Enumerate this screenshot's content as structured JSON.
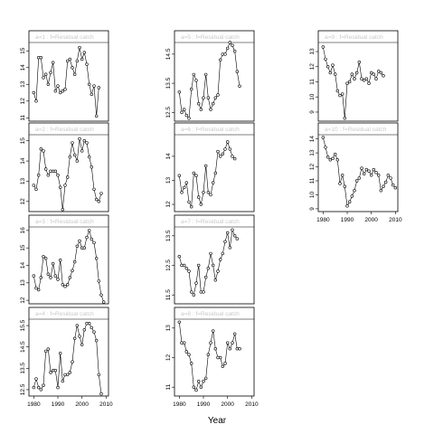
{
  "xlabel": "Year",
  "chart_data": [
    {
      "type": "line",
      "panel": "a=1 : f=Residual catch",
      "xlim": [
        1978,
        2011
      ],
      "ylim": [
        10.8,
        15.5
      ],
      "yticks": [
        11,
        12,
        13,
        14,
        15
      ],
      "xticks": [],
      "x": [
        1980,
        1981,
        1982,
        1983,
        1984,
        1985,
        1986,
        1987,
        1988,
        1989,
        1990,
        1991,
        1992,
        1993,
        1994,
        1995,
        1996,
        1997,
        1998,
        1999,
        2000,
        2001,
        2002,
        2003,
        2004,
        2005,
        2006,
        2007,
        2008,
        2009,
        2010
      ],
      "y": [
        12.5,
        12.0,
        14.6,
        14.6,
        13.4,
        13.6,
        13.0,
        13.7,
        14.3,
        12.6,
        12.9,
        12.5,
        12.6,
        12.7,
        14.4,
        14.5,
        14.0,
        13.6,
        14.4,
        15.2,
        14.5,
        14.9,
        14.2,
        13.0,
        12.4,
        12.9,
        11.1,
        12.8,
        null,
        null,
        null
      ]
    },
    {
      "type": "line",
      "panel": "a=2 : f=Residual catch",
      "xlim": [
        1978,
        2011
      ],
      "ylim": [
        11.5,
        15.3
      ],
      "yticks": [
        12,
        13,
        14,
        15
      ],
      "xticks": [],
      "x": [
        1980,
        1981,
        1982,
        1983,
        1984,
        1985,
        1986,
        1987,
        1988,
        1989,
        1990,
        1991,
        1992,
        1993,
        1994,
        1995,
        1996,
        1997,
        1998,
        1999,
        2000,
        2001,
        2002,
        2003,
        2004,
        2005,
        2006,
        2007,
        2008,
        2009,
        2010
      ],
      "y": [
        12.8,
        12.6,
        13.3,
        14.6,
        14.5,
        13.6,
        13.3,
        13.5,
        13.5,
        13.5,
        13.3,
        12.7,
        11.6,
        12.8,
        13.2,
        14.2,
        14.9,
        14.3,
        14.0,
        15.1,
        14.5,
        15.0,
        14.9,
        14.2,
        13.7,
        12.6,
        12.1,
        12.0,
        12.4,
        null,
        null
      ]
    },
    {
      "type": "line",
      "panel": "a=3 : f=Residual catch",
      "xlim": [
        1978,
        2011
      ],
      "ylim": [
        11.8,
        16.2
      ],
      "yticks": [
        12,
        13,
        14,
        15,
        16
      ],
      "xticks": [],
      "x": [
        1980,
        1981,
        1982,
        1983,
        1984,
        1985,
        1986,
        1987,
        1988,
        1989,
        1990,
        1991,
        1992,
        1993,
        1994,
        1995,
        1996,
        1997,
        1998,
        1999,
        2000,
        2001,
        2002,
        2003,
        2004,
        2005,
        2006,
        2007,
        2008,
        2009,
        2010
      ],
      "y": [
        13.4,
        12.7,
        12.6,
        13.3,
        14.5,
        14.4,
        13.5,
        13.3,
        14.1,
        13.4,
        13.2,
        14.3,
        12.9,
        12.8,
        12.9,
        13.3,
        13.7,
        14.2,
        15.1,
        15.4,
        15.0,
        15.0,
        15.6,
        16.0,
        15.5,
        15.3,
        14.4,
        13.1,
        12.3,
        11.9,
        null
      ]
    },
    {
      "type": "line",
      "panel": "a=4 : f=Residual catch",
      "xlim": [
        1978,
        2011
      ],
      "ylim": [
        12.2,
        15.8
      ],
      "yticks": [
        12.5,
        13.5,
        14.5,
        15.5
      ],
      "xticks": [
        1980,
        1990,
        2000,
        2010
      ],
      "x": [
        1980,
        1981,
        1982,
        1983,
        1984,
        1985,
        1986,
        1987,
        1988,
        1989,
        1990,
        1991,
        1992,
        1993,
        1994,
        1995,
        1996,
        1997,
        1998,
        1999,
        2000,
        2001,
        2002,
        2003,
        2004,
        2005,
        2006,
        2007,
        2008,
        2009,
        2010
      ],
      "y": [
        12.6,
        13.0,
        12.6,
        12.5,
        12.7,
        14.3,
        14.4,
        13.3,
        13.4,
        13.4,
        12.6,
        14.2,
        12.9,
        13.2,
        13.2,
        13.3,
        13.8,
        14.9,
        15.5,
        15.0,
        14.6,
        15.3,
        15.6,
        15.6,
        15.4,
        15.2,
        14.8,
        13.2,
        12.3,
        null,
        null
      ]
    },
    {
      "type": "line",
      "panel": "a=5 : f=Residual catch",
      "xlim": [
        1978,
        2011
      ],
      "ylim": [
        12.2,
        14.9
      ],
      "yticks": [
        12.5,
        13.5,
        14.5
      ],
      "xticks": [],
      "x": [
        1980,
        1981,
        1982,
        1983,
        1984,
        1985,
        1986,
        1987,
        1988,
        1989,
        1990,
        1991,
        1992,
        1993,
        1994,
        1995,
        1996,
        1997,
        1998,
        1999,
        2000,
        2001,
        2002,
        2003,
        2004,
        2005,
        2006,
        2007,
        2008,
        2009,
        2010
      ],
      "y": [
        13.2,
        12.5,
        12.6,
        12.4,
        12.3,
        13.3,
        13.8,
        13.6,
        12.8,
        12.6,
        13.0,
        13.8,
        13.0,
        12.6,
        12.8,
        13.0,
        13.1,
        14.3,
        14.5,
        14.5,
        14.7,
        14.9,
        14.8,
        14.6,
        13.9,
        13.4,
        null,
        null,
        null,
        null,
        null
      ]
    },
    {
      "type": "line",
      "panel": "a=6 : f=Residual catch",
      "xlim": [
        1978,
        2011
      ],
      "ylim": [
        11.7,
        14.9
      ],
      "yticks": [
        12.0,
        13.0,
        14.0
      ],
      "xticks": [],
      "x": [
        1980,
        1981,
        1982,
        1983,
        1984,
        1985,
        1986,
        1987,
        1988,
        1989,
        1990,
        1991,
        1992,
        1993,
        1994,
        1995,
        1996,
        1997,
        1998,
        1999,
        2000,
        2001,
        2002,
        2003,
        2004,
        2005,
        2006,
        2007,
        2008,
        2009,
        2010
      ],
      "y": [
        13.2,
        12.5,
        12.7,
        12.9,
        12.1,
        11.9,
        13.3,
        13.2,
        12.3,
        12.0,
        12.5,
        13.6,
        12.5,
        12.4,
        12.9,
        13.3,
        14.2,
        14.0,
        14.1,
        14.3,
        14.6,
        14.3,
        14.0,
        13.9,
        null,
        null,
        null,
        null,
        null,
        null,
        null
      ]
    },
    {
      "type": "line",
      "panel": "a=7 : f=Residual catch",
      "xlim": [
        1978,
        2011
      ],
      "ylim": [
        11.2,
        13.8
      ],
      "yticks": [
        11.5,
        12.5,
        13.5
      ],
      "xticks": [],
      "x": [
        1980,
        1981,
        1982,
        1983,
        1984,
        1985,
        1986,
        1987,
        1988,
        1989,
        1990,
        1991,
        1992,
        1993,
        1994,
        1995,
        1996,
        1997,
        1998,
        1999,
        2000,
        2001,
        2002,
        2003,
        2004,
        2005,
        2006,
        2007,
        2008,
        2009,
        2010
      ],
      "y": [
        12.8,
        12.5,
        12.5,
        12.4,
        12.3,
        11.6,
        11.5,
        11.9,
        12.5,
        11.6,
        11.6,
        12.1,
        12.4,
        12.9,
        12.5,
        12.0,
        12.3,
        12.7,
        12.9,
        13.3,
        13.6,
        13.1,
        13.7,
        13.5,
        13.4,
        null,
        null,
        null,
        null,
        null,
        null
      ]
    },
    {
      "type": "line",
      "panel": "a=8 : f=Residual catch",
      "xlim": [
        1978,
        2011
      ],
      "ylim": [
        10.7,
        13.3
      ],
      "yticks": [
        11.0,
        12.0,
        13.0
      ],
      "xticks": [
        1980,
        1990,
        2000,
        2010
      ],
      "x": [
        1980,
        1981,
        1982,
        1983,
        1984,
        1985,
        1986,
        1987,
        1988,
        1989,
        1990,
        1991,
        1992,
        1993,
        1994,
        1995,
        1996,
        1997,
        1998,
        1999,
        2000,
        2001,
        2002,
        2003,
        2004,
        2005,
        2006,
        2007,
        2008,
        2009,
        2010
      ],
      "y": [
        13.2,
        12.5,
        12.5,
        12.2,
        12.1,
        11.8,
        11.0,
        10.9,
        11.2,
        11.0,
        11.2,
        11.3,
        12.1,
        12.5,
        12.9,
        12.3,
        12.0,
        12.0,
        11.7,
        11.8,
        12.5,
        12.3,
        12.5,
        12.8,
        12.3,
        12.3,
        null,
        null,
        null,
        null,
        null
      ]
    },
    {
      "type": "line",
      "panel": "a=9 : f=Residual catch",
      "xlim": [
        1978,
        2011
      ],
      "ylim": [
        8.4,
        13.6
      ],
      "yticks": [
        9,
        10,
        11,
        12,
        13
      ],
      "xticks": [],
      "x": [
        1980,
        1981,
        1982,
        1983,
        1984,
        1985,
        1986,
        1987,
        1988,
        1989,
        1990,
        1991,
        1992,
        1993,
        1994,
        1995,
        1996,
        1997,
        1998,
        1999,
        2000,
        2001,
        2002,
        2003,
        2004,
        2005,
        2006,
        2007,
        2008,
        2009,
        2010
      ],
      "y": [
        13.3,
        12.5,
        12.0,
        11.6,
        12.1,
        11.5,
        10.4,
        10.1,
        10.2,
        8.6,
        10.9,
        11.0,
        11.5,
        11.2,
        11.6,
        12.3,
        11.2,
        11.1,
        11.2,
        10.9,
        11.6,
        11.5,
        11.2,
        11.7,
        11.6,
        11.4,
        null,
        null,
        null,
        null,
        null
      ]
    },
    {
      "type": "line",
      "panel": "a=10 : f=Residual catch",
      "xlim": [
        1978,
        2011
      ],
      "ylim": [
        8.8,
        14.3
      ],
      "yticks": [
        9,
        10,
        11,
        12,
        13,
        14
      ],
      "xticks": [
        1980,
        1990,
        2000,
        2010
      ],
      "x": [
        1980,
        1981,
        1982,
        1983,
        1984,
        1985,
        1986,
        1987,
        1988,
        1989,
        1990,
        1991,
        1992,
        1993,
        1994,
        1995,
        1996,
        1997,
        1998,
        1999,
        2000,
        2001,
        2002,
        2003,
        2004,
        2005,
        2006,
        2007,
        2008,
        2009,
        2010
      ],
      "y": [
        14.1,
        13.4,
        12.7,
        12.5,
        12.6,
        12.9,
        12.5,
        10.8,
        11.4,
        10.6,
        9.2,
        9.5,
        9.9,
        10.3,
        11.0,
        11.2,
        11.9,
        11.5,
        11.8,
        11.7,
        11.4,
        11.8,
        11.6,
        11.4,
        10.3,
        10.6,
        10.9,
        11.4,
        11.2,
        10.7,
        10.5
      ]
    }
  ]
}
